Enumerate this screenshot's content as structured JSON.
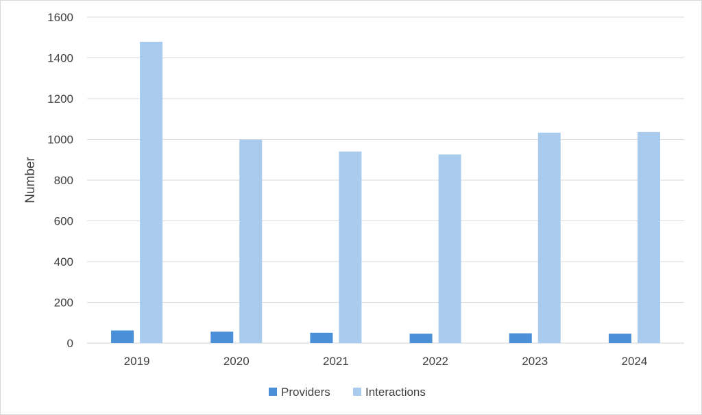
{
  "chart_data": {
    "type": "bar",
    "title": "",
    "xlabel": "",
    "ylabel": "Number",
    "ylim": [
      0,
      1600
    ],
    "yticks": [
      0,
      200,
      400,
      600,
      800,
      1000,
      1200,
      1400,
      1600
    ],
    "grid": true,
    "legend_position": "bottom",
    "categories": [
      "2019",
      "2020",
      "2021",
      "2022",
      "2023",
      "2024"
    ],
    "series": [
      {
        "name": "Providers",
        "color": "#4a90d9",
        "values": [
          62,
          56,
          51,
          46,
          48,
          46
        ]
      },
      {
        "name": "Interactions",
        "color": "#a9cbee",
        "values": [
          1479,
          999,
          940,
          926,
          1033,
          1036
        ]
      }
    ]
  }
}
